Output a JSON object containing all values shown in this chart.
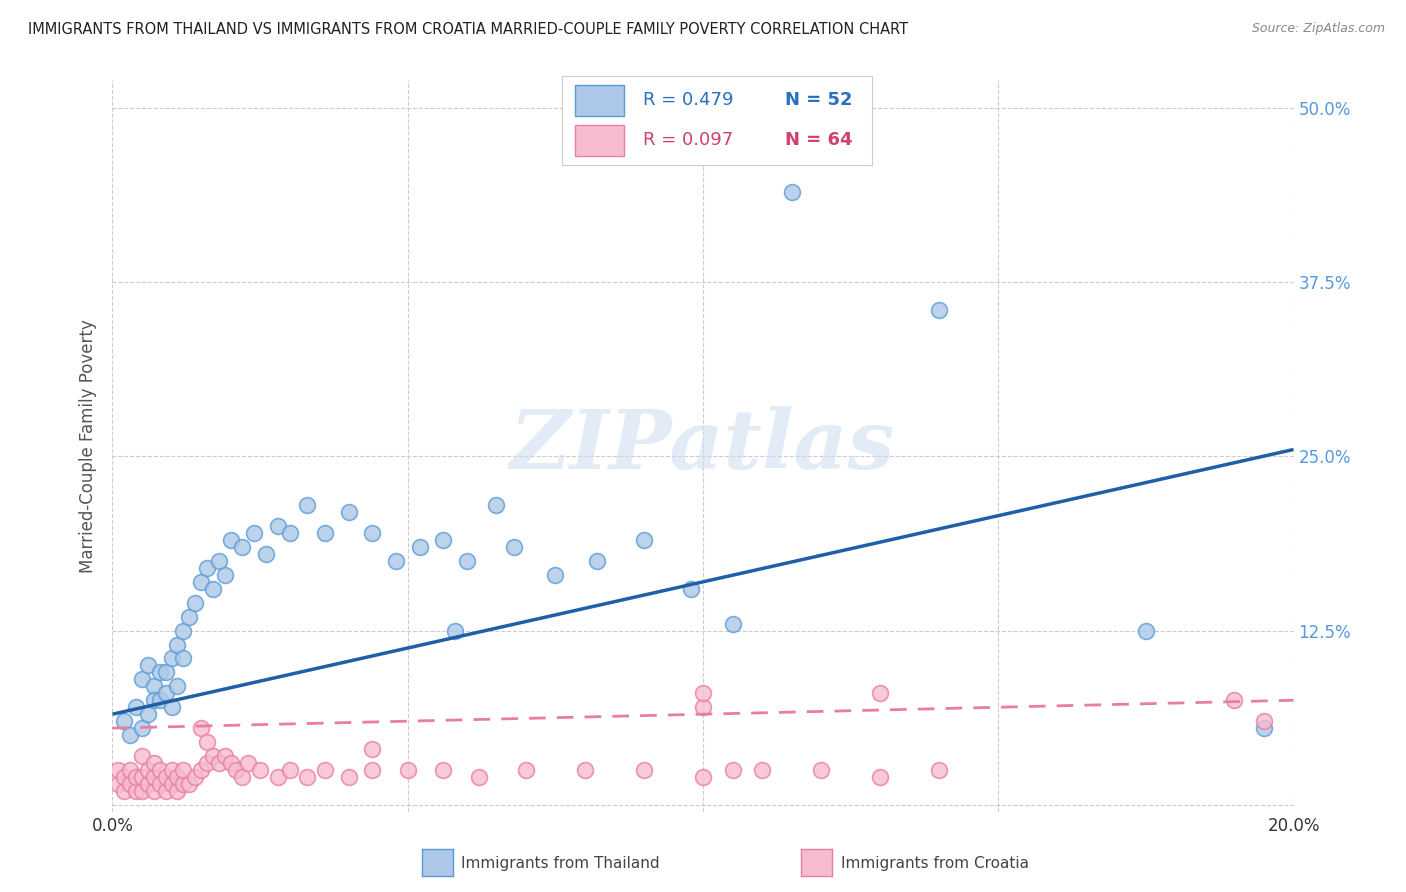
{
  "title": "IMMIGRANTS FROM THAILAND VS IMMIGRANTS FROM CROATIA MARRIED-COUPLE FAMILY POVERTY CORRELATION CHART",
  "source": "Source: ZipAtlas.com",
  "ylabel": "Married-Couple Family Poverty",
  "xlim": [
    0.0,
    0.2
  ],
  "ylim": [
    -0.005,
    0.52
  ],
  "yticks": [
    0.0,
    0.125,
    0.25,
    0.375,
    0.5
  ],
  "ytick_labels_right": [
    "",
    "12.5%",
    "25.0%",
    "37.5%",
    "50.0%"
  ],
  "xtick_labels": [
    "0.0%",
    "",
    "",
    "",
    "20.0%"
  ],
  "watermark_text": "ZIPatlas",
  "thailand_fill": "#adc8e8",
  "thailand_edge": "#5b9bd5",
  "croatia_fill": "#f5bcd0",
  "croatia_edge": "#e87da0",
  "line_blue": "#1f5fa6",
  "line_pink": "#e87da0",
  "legend_text_blue": "#2970c0",
  "legend_text_pink": "#d04070",
  "right_axis_color": "#5599dd",
  "grid_color": "#cccccc",
  "title_color": "#222222",
  "source_color": "#888888",
  "ylabel_color": "#555555",
  "xtick_color": "#333333",
  "legend_R1": "R = 0.479",
  "legend_N1": "N = 52",
  "legend_R2": "R = 0.097",
  "legend_N2": "N = 64",
  "bottom_label1": "Immigrants from Thailand",
  "bottom_label2": "Immigrants from Croatia",
  "thai_x": [
    0.002,
    0.003,
    0.004,
    0.005,
    0.005,
    0.006,
    0.006,
    0.007,
    0.007,
    0.008,
    0.008,
    0.009,
    0.009,
    0.01,
    0.01,
    0.011,
    0.011,
    0.012,
    0.012,
    0.013,
    0.014,
    0.015,
    0.016,
    0.017,
    0.018,
    0.019,
    0.02,
    0.022,
    0.024,
    0.026,
    0.028,
    0.03,
    0.033,
    0.036,
    0.04,
    0.044,
    0.048,
    0.052,
    0.056,
    0.06,
    0.068,
    0.075,
    0.082,
    0.09,
    0.098,
    0.105,
    0.058,
    0.065,
    0.115,
    0.14,
    0.175,
    0.195
  ],
  "thai_y": [
    0.06,
    0.05,
    0.07,
    0.09,
    0.055,
    0.1,
    0.065,
    0.085,
    0.075,
    0.095,
    0.075,
    0.08,
    0.095,
    0.105,
    0.07,
    0.115,
    0.085,
    0.125,
    0.105,
    0.135,
    0.145,
    0.16,
    0.17,
    0.155,
    0.175,
    0.165,
    0.19,
    0.185,
    0.195,
    0.18,
    0.2,
    0.195,
    0.215,
    0.195,
    0.21,
    0.195,
    0.175,
    0.185,
    0.19,
    0.175,
    0.185,
    0.165,
    0.175,
    0.19,
    0.155,
    0.13,
    0.125,
    0.215,
    0.44,
    0.355,
    0.125,
    0.055
  ],
  "croatia_x": [
    0.001,
    0.001,
    0.002,
    0.002,
    0.003,
    0.003,
    0.004,
    0.004,
    0.005,
    0.005,
    0.005,
    0.006,
    0.006,
    0.007,
    0.007,
    0.007,
    0.008,
    0.008,
    0.009,
    0.009,
    0.01,
    0.01,
    0.011,
    0.011,
    0.012,
    0.012,
    0.013,
    0.014,
    0.015,
    0.015,
    0.016,
    0.016,
    0.017,
    0.018,
    0.019,
    0.02,
    0.021,
    0.022,
    0.023,
    0.025,
    0.028,
    0.03,
    0.033,
    0.036,
    0.04,
    0.044,
    0.05,
    0.056,
    0.062,
    0.07,
    0.08,
    0.09,
    0.1,
    0.105,
    0.11,
    0.12,
    0.13,
    0.14,
    0.044,
    0.1,
    0.1,
    0.13,
    0.19,
    0.195
  ],
  "croatia_y": [
    0.015,
    0.025,
    0.01,
    0.02,
    0.015,
    0.025,
    0.01,
    0.02,
    0.01,
    0.02,
    0.035,
    0.015,
    0.025,
    0.01,
    0.02,
    0.03,
    0.015,
    0.025,
    0.01,
    0.02,
    0.015,
    0.025,
    0.01,
    0.02,
    0.015,
    0.025,
    0.015,
    0.02,
    0.055,
    0.025,
    0.045,
    0.03,
    0.035,
    0.03,
    0.035,
    0.03,
    0.025,
    0.02,
    0.03,
    0.025,
    0.02,
    0.025,
    0.02,
    0.025,
    0.02,
    0.025,
    0.025,
    0.025,
    0.02,
    0.025,
    0.025,
    0.025,
    0.02,
    0.025,
    0.025,
    0.025,
    0.02,
    0.025,
    0.04,
    0.07,
    0.08,
    0.08,
    0.075,
    0.06
  ],
  "thai_line_x0": 0.0,
  "thai_line_y0": 0.065,
  "thai_line_x1": 0.2,
  "thai_line_y1": 0.255,
  "croatia_line_x0": 0.0,
  "croatia_line_y0": 0.055,
  "croatia_line_x1": 0.2,
  "croatia_line_y1": 0.075
}
